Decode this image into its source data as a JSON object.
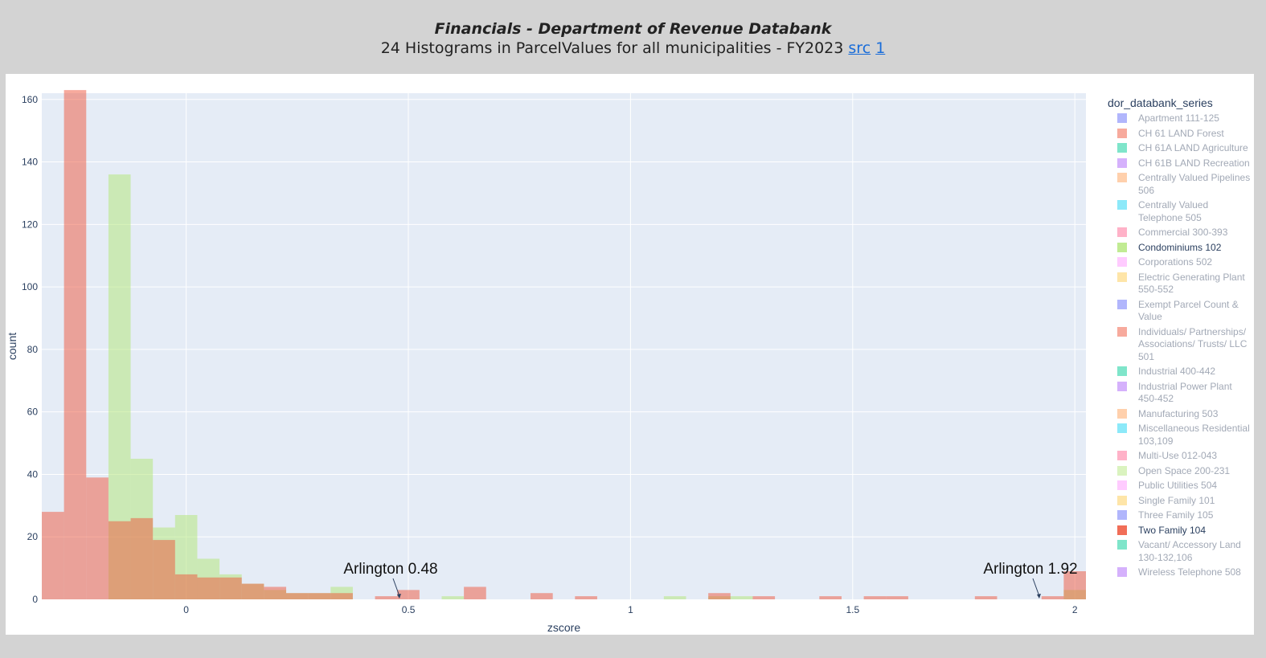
{
  "header": {
    "title": "Financials - Department of Revenue Databank",
    "subtitle": "24 Histograms in ParcelValues for all municipalities - FY2023",
    "link_src": "src",
    "link_1": "1"
  },
  "legend": {
    "title": "dor_databank_series",
    "items": [
      {
        "label": "Apartment 111-125",
        "color": "#636efa",
        "active": false
      },
      {
        "label": "CH 61 LAND Forest",
        "color": "#EF553B",
        "active": false
      },
      {
        "label": "CH 61A LAND Agriculture",
        "color": "#00cc96",
        "active": false
      },
      {
        "label": "CH 61B LAND Recreation",
        "color": "#ab63fa",
        "active": false
      },
      {
        "label": "Centrally Valued Pipelines 506",
        "color": "#FFA15A",
        "active": false
      },
      {
        "label": "Centrally Valued Telephone 505",
        "color": "#19d3f3",
        "active": false
      },
      {
        "label": "Commercial 300-393",
        "color": "#FF6692",
        "active": false
      },
      {
        "label": "Condominiums 102",
        "color": "#B6E880",
        "active": true
      },
      {
        "label": "Corporations 502",
        "color": "#FF97FF",
        "active": false
      },
      {
        "label": "Electric Generating Plant 550-552",
        "color": "#FECB52",
        "active": false
      },
      {
        "label": "Exempt Parcel Count & Value",
        "color": "#636efa",
        "active": false
      },
      {
        "label": "Individuals/ Partnerships/ Associations/ Trusts/ LLC 501",
        "color": "#EF553B",
        "active": false
      },
      {
        "label": "Industrial 400-442",
        "color": "#00cc96",
        "active": false
      },
      {
        "label": "Industrial Power Plant 450-452",
        "color": "#ab63fa",
        "active": false
      },
      {
        "label": "Manufacturing 503",
        "color": "#FFA15A",
        "active": false
      },
      {
        "label": "Miscellaneous Residential 103,109",
        "color": "#19d3f3",
        "active": false
      },
      {
        "label": "Multi-Use 012-043",
        "color": "#FF6692",
        "active": false
      },
      {
        "label": "Open Space 200-231",
        "color": "#B6E880",
        "active": false
      },
      {
        "label": "Public Utilities 504",
        "color": "#FF97FF",
        "active": false
      },
      {
        "label": "Single Family 101",
        "color": "#FECB52",
        "active": false
      },
      {
        "label": "Three Family 105",
        "color": "#636efa",
        "active": false
      },
      {
        "label": "Two Family 104",
        "color": "#EF553B",
        "active": true
      },
      {
        "label": "Vacant/ Accessory Land 130-132,106",
        "color": "#00cc96",
        "active": false
      },
      {
        "label": "Wireless Telephone 508",
        "color": "#ab63fa",
        "active": false
      }
    ]
  },
  "chart_data": {
    "type": "bar",
    "barmode": "overlay",
    "xlabel": "zscore",
    "ylabel": "count",
    "xlim": [
      -0.325,
      2.025
    ],
    "ylim": [
      0,
      162
    ],
    "x_ticks": [
      0,
      0.5,
      1,
      1.5,
      2
    ],
    "y_ticks": [
      0,
      20,
      40,
      60,
      80,
      100,
      120,
      140,
      160
    ],
    "grid": true,
    "bin_width": 0.05,
    "series": [
      {
        "name": "Condominiums 102",
        "color": "#B6E880",
        "opacity": 0.55,
        "bins": [
          {
            "x0": -0.175,
            "count": 136
          },
          {
            "x0": -0.125,
            "count": 45
          },
          {
            "x0": -0.075,
            "count": 23
          },
          {
            "x0": -0.025,
            "count": 27
          },
          {
            "x0": 0.025,
            "count": 13
          },
          {
            "x0": 0.075,
            "count": 8
          },
          {
            "x0": 0.125,
            "count": 5
          },
          {
            "x0": 0.175,
            "count": 3
          },
          {
            "x0": 0.225,
            "count": 2
          },
          {
            "x0": 0.275,
            "count": 2
          },
          {
            "x0": 0.325,
            "count": 4
          },
          {
            "x0": 0.575,
            "count": 1
          },
          {
            "x0": 1.075,
            "count": 1
          },
          {
            "x0": 1.175,
            "count": 1
          },
          {
            "x0": 1.225,
            "count": 1
          },
          {
            "x0": 1.975,
            "count": 3
          }
        ]
      },
      {
        "name": "Two Family 104",
        "color": "#EF553B",
        "opacity": 0.5,
        "bins": [
          {
            "x0": -0.325,
            "count": 28
          },
          {
            "x0": -0.275,
            "count": 163
          },
          {
            "x0": -0.225,
            "count": 39
          },
          {
            "x0": -0.175,
            "count": 25
          },
          {
            "x0": -0.125,
            "count": 26
          },
          {
            "x0": -0.075,
            "count": 19
          },
          {
            "x0": -0.025,
            "count": 8
          },
          {
            "x0": 0.025,
            "count": 7
          },
          {
            "x0": 0.075,
            "count": 7
          },
          {
            "x0": 0.125,
            "count": 5
          },
          {
            "x0": 0.175,
            "count": 4
          },
          {
            "x0": 0.225,
            "count": 2
          },
          {
            "x0": 0.275,
            "count": 2
          },
          {
            "x0": 0.325,
            "count": 2
          },
          {
            "x0": 0.425,
            "count": 1
          },
          {
            "x0": 0.475,
            "count": 3
          },
          {
            "x0": 0.625,
            "count": 4
          },
          {
            "x0": 0.775,
            "count": 2
          },
          {
            "x0": 0.875,
            "count": 1
          },
          {
            "x0": 1.175,
            "count": 2
          },
          {
            "x0": 1.275,
            "count": 1
          },
          {
            "x0": 1.425,
            "count": 1
          },
          {
            "x0": 1.525,
            "count": 1
          },
          {
            "x0": 1.575,
            "count": 1
          },
          {
            "x0": 1.775,
            "count": 1
          },
          {
            "x0": 1.925,
            "count": 1
          },
          {
            "x0": 1.975,
            "count": 9
          }
        ]
      }
    ],
    "annotations": [
      {
        "text": "Arlington 0.48",
        "x": 0.48,
        "y": 0
      },
      {
        "text": "Arlington 1.92",
        "x": 1.92,
        "y": 0
      }
    ]
  }
}
